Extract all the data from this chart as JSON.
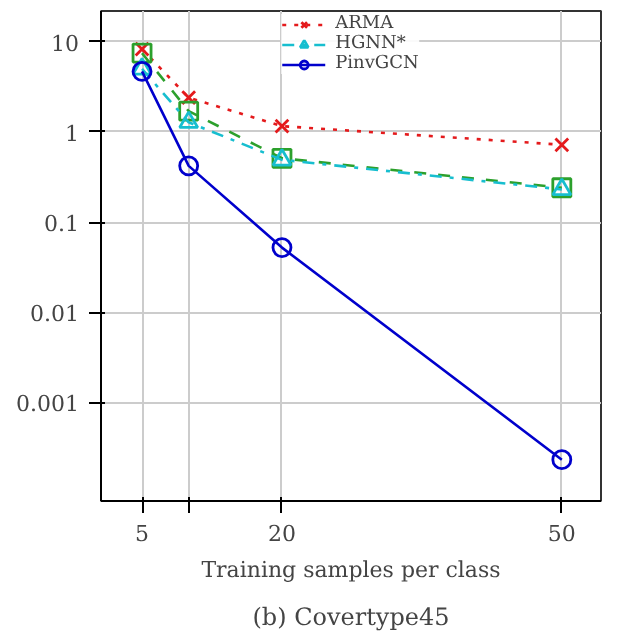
{
  "chart_data": {
    "type": "line",
    "title": "(b) Covertype45",
    "xlabel": "Training samples per class",
    "x": [
      5,
      10,
      20,
      50
    ],
    "series": [
      {
        "name": "ARMA",
        "color": "#e41a1c",
        "values": [
          8.3,
          2.4,
          1.16,
          0.72
        ],
        "marker": "cross",
        "line_style": "dotted"
      },
      {
        "color": "#2ca02c",
        "values": [
          7.5,
          1.7,
          0.51,
          0.24
        ],
        "marker": "square",
        "line_style": "dashed"
      },
      {
        "name": "HGNN*",
        "color": "#17becf",
        "values": [
          5.0,
          1.28,
          0.49,
          0.23
        ],
        "marker": "triangle",
        "line_style": "dashdot"
      },
      {
        "name": "PinvGCN",
        "color": "#0000cc",
        "values": [
          4.7,
          0.42,
          0.052,
          0.00023
        ],
        "marker": "circle",
        "line_style": "solid"
      }
    ],
    "log": "y",
    "xlim": [
      0.6,
      54.2
    ],
    "ylim": [
      8e-05,
      22
    ],
    "xticks": [
      5,
      {
        "value": 10,
        "label": null
      },
      20,
      50
    ],
    "yticks": [
      {
        "value": 0.001,
        "label": "0.001"
      },
      {
        "value": 0.01,
        "label": "0.01"
      },
      {
        "value": 0.1,
        "label": "0.1"
      },
      1,
      10
    ],
    "grid": true,
    "legend": "top"
  }
}
